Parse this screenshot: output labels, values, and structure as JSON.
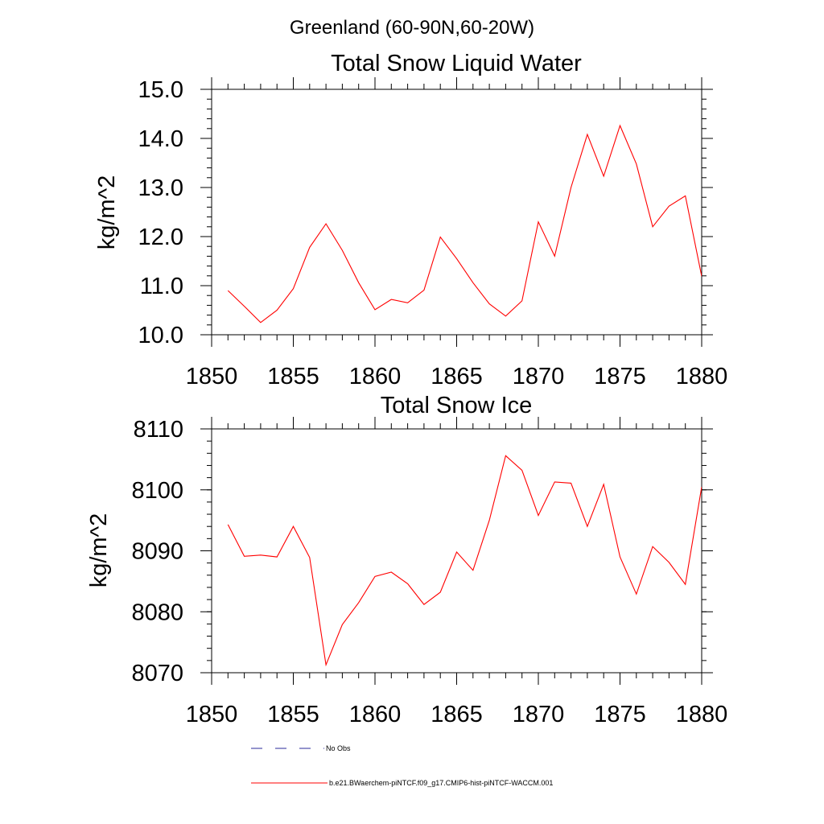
{
  "figure": {
    "title": "Greenland (60-90N,60-20W)"
  },
  "colors": {
    "model": "#ff0000",
    "obs": "#2a2a9a",
    "axis": "#000000"
  },
  "legend": {
    "placement": "bottom",
    "obs_label": "No Obs",
    "model_label": "b.e21.BWaerchem-piNTCF.f09_g17.CMIP6-hist-piNTCF-WACCM.001"
  },
  "chart_data": [
    {
      "type": "line",
      "title": "Total Snow Liquid Water",
      "xlabel": "",
      "ylabel": "kg/m^2",
      "xlim": [
        1850,
        1880
      ],
      "ylim": [
        10.0,
        15.0
      ],
      "x_ticks": [
        1850,
        1855,
        1860,
        1865,
        1870,
        1875,
        1880
      ],
      "y_ticks": [
        "10.0",
        "11.0",
        "12.0",
        "13.0",
        "14.0",
        "15.0"
      ],
      "y_tick_values": [
        10,
        11,
        12,
        13,
        14,
        15
      ],
      "y_minor_step": 0.2,
      "grid": false,
      "series": [
        {
          "name": "b.e21.BWaerchem-piNTCF.f09_g17.CMIP6-hist-piNTCF-WACCM.001",
          "x": [
            1851,
            1852,
            1853,
            1854,
            1855,
            1856,
            1857,
            1858,
            1859,
            1860,
            1861,
            1862,
            1863,
            1864,
            1865,
            1866,
            1867,
            1868,
            1869,
            1870,
            1871,
            1872,
            1873,
            1874,
            1875,
            1876,
            1877,
            1878,
            1879,
            1880
          ],
          "values": [
            10.9,
            10.58,
            10.25,
            10.5,
            10.94,
            11.78,
            12.26,
            11.72,
            11.06,
            10.51,
            10.72,
            10.65,
            10.91,
            11.99,
            11.55,
            11.06,
            10.63,
            10.38,
            10.69,
            12.3,
            11.6,
            13.0,
            14.08,
            13.23,
            14.26,
            13.48,
            12.2,
            12.62,
            12.83,
            11.19
          ]
        }
      ]
    },
    {
      "type": "line",
      "title": "Total Snow Ice",
      "xlabel": "",
      "ylabel": "kg/m^2",
      "xlim": [
        1850,
        1880
      ],
      "ylim": [
        8070,
        8110
      ],
      "x_ticks": [
        1850,
        1855,
        1860,
        1865,
        1870,
        1875,
        1880
      ],
      "y_ticks": [
        "8070",
        "8080",
        "8090",
        "8100",
        "8110"
      ],
      "y_tick_values": [
        8070,
        8080,
        8090,
        8100,
        8110
      ],
      "y_minor_step": 2,
      "grid": false,
      "series": [
        {
          "name": "b.e21.BWaerchem-piNTCF.f09_g17.CMIP6-hist-piNTCF-WACCM.001",
          "x": [
            1851,
            1852,
            1853,
            1854,
            1855,
            1856,
            1857,
            1858,
            1859,
            1860,
            1861,
            1862,
            1863,
            1864,
            1865,
            1866,
            1867,
            1868,
            1869,
            1870,
            1871,
            1872,
            1873,
            1874,
            1875,
            1876,
            1877,
            1878,
            1879,
            1880
          ],
          "values": [
            8094.3,
            8089.1,
            8089.3,
            8089.0,
            8094.0,
            8088.9,
            8071.3,
            8077.9,
            8081.5,
            8085.8,
            8086.5,
            8084.6,
            8081.2,
            8083.2,
            8089.8,
            8086.8,
            8095.0,
            8105.6,
            8103.2,
            8095.8,
            8101.3,
            8101.1,
            8094.0,
            8100.9,
            8089.0,
            8082.9,
            8090.7,
            8088.1,
            8084.5,
            8100.5
          ]
        }
      ]
    }
  ]
}
